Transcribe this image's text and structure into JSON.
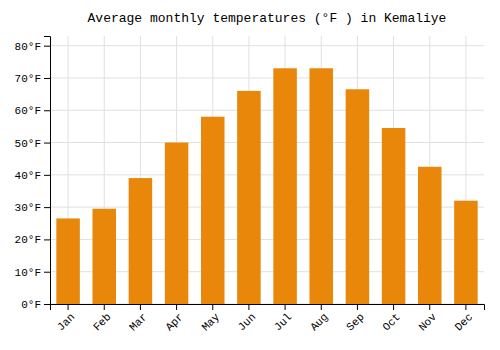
{
  "chart_data": {
    "type": "bar",
    "title": "Average monthly temperatures (°F ) in Kemaliye",
    "categories": [
      "Jan",
      "Feb",
      "Mar",
      "Apr",
      "May",
      "Jun",
      "Jul",
      "Aug",
      "Sep",
      "Oct",
      "Nov",
      "Dec"
    ],
    "values": [
      26.5,
      29.5,
      39.0,
      50.0,
      58.0,
      66.0,
      73.0,
      73.0,
      66.5,
      54.5,
      42.5,
      32.0
    ],
    "color": "#E8870A",
    "ylim": [
      0,
      83
    ],
    "yticks": [
      {
        "value": 0,
        "label": "0°F"
      },
      {
        "value": 10,
        "label": "10°F"
      },
      {
        "value": 20,
        "label": "20°F"
      },
      {
        "value": 30,
        "label": "30°F"
      },
      {
        "value": 40,
        "label": "40°F"
      },
      {
        "value": 50,
        "label": "50°F"
      },
      {
        "value": 60,
        "label": "60°F"
      },
      {
        "value": 70,
        "label": "70°F"
      },
      {
        "value": 80,
        "label": "80°F"
      }
    ],
    "grid": true
  }
}
